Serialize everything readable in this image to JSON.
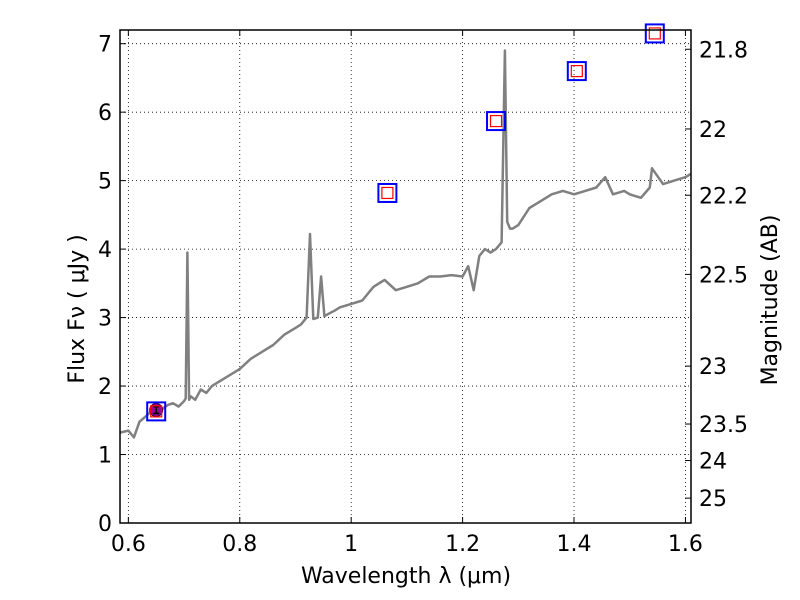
{
  "chart_data": {
    "type": "line",
    "xlabel": "Wavelength  λ (μm)",
    "ylabel": "Flux  Fν  ( μJy )",
    "ylabel_right": "Magnitude (AB)",
    "xlim": [
      0.585,
      1.61
    ],
    "ylim": [
      0,
      7.2
    ],
    "x_ticks": [
      0.6,
      0.8,
      1.0,
      1.2,
      1.4,
      1.6
    ],
    "x_tick_labels": [
      "0.6",
      "0.8",
      "1",
      "1.2",
      "1.4",
      "1.6"
    ],
    "y_ticks": [
      0,
      1,
      2,
      3,
      4,
      5,
      6,
      7
    ],
    "y_tick_labels": [
      "0",
      "1",
      "2",
      "3",
      "4",
      "5",
      "6",
      "7"
    ],
    "mag_ticks": [
      21.8,
      22,
      22.2,
      22.5,
      23,
      23.5,
      24,
      25
    ],
    "mag_tick_labels": [
      "21.8",
      "22",
      "22.2",
      "22.5",
      "23",
      "23.5",
      "24",
      "25"
    ],
    "grid": true,
    "colors": {
      "spectrum": "#808080",
      "observed_marker": "#0000ff",
      "model_marker": "#ff0000",
      "measured_point": "#990099"
    },
    "spectrum": {
      "x": [
        0.585,
        0.6,
        0.61,
        0.62,
        0.63,
        0.64,
        0.65,
        0.66,
        0.67,
        0.68,
        0.69,
        0.7,
        0.703,
        0.706,
        0.709,
        0.712,
        0.72,
        0.73,
        0.74,
        0.75,
        0.76,
        0.77,
        0.78,
        0.79,
        0.8,
        0.82,
        0.84,
        0.86,
        0.88,
        0.9,
        0.91,
        0.92,
        0.926,
        0.932,
        0.94,
        0.946,
        0.952,
        0.958,
        0.97,
        0.98,
        1.0,
        1.02,
        1.04,
        1.06,
        1.08,
        1.1,
        1.12,
        1.14,
        1.16,
        1.18,
        1.2,
        1.21,
        1.22,
        1.23,
        1.24,
        1.25,
        1.26,
        1.27,
        1.276,
        1.28,
        1.285,
        1.29,
        1.3,
        1.32,
        1.34,
        1.36,
        1.38,
        1.4,
        1.42,
        1.44,
        1.456,
        1.47,
        1.49,
        1.5,
        1.52,
        1.536,
        1.54,
        1.56,
        1.58,
        1.6,
        1.61
      ],
      "y": [
        1.32,
        1.35,
        1.25,
        1.48,
        1.55,
        1.62,
        1.58,
        1.66,
        1.72,
        1.75,
        1.7,
        1.78,
        1.82,
        3.95,
        1.8,
        1.85,
        1.8,
        1.95,
        1.9,
        2.0,
        2.05,
        2.1,
        2.15,
        2.2,
        2.25,
        2.4,
        2.5,
        2.6,
        2.75,
        2.85,
        2.9,
        3.0,
        4.22,
        2.98,
        3.0,
        3.6,
        3.02,
        3.05,
        3.1,
        3.15,
        3.2,
        3.25,
        3.45,
        3.55,
        3.4,
        3.45,
        3.5,
        3.6,
        3.6,
        3.62,
        3.6,
        3.75,
        3.4,
        3.9,
        4.0,
        3.95,
        4.0,
        4.1,
        6.9,
        4.4,
        4.3,
        4.3,
        4.35,
        4.6,
        4.7,
        4.8,
        4.85,
        4.8,
        4.85,
        4.9,
        5.05,
        4.8,
        4.85,
        4.8,
        4.75,
        4.9,
        5.18,
        4.95,
        5.0,
        5.05,
        5.1
      ]
    },
    "photometry": {
      "x": [
        0.65,
        1.065,
        1.26,
        1.405,
        1.545
      ],
      "y": [
        1.63,
        4.82,
        5.87,
        6.6,
        7.15
      ]
    },
    "measured": {
      "x": 0.65,
      "y": 1.65,
      "yerr": 0.05
    }
  }
}
